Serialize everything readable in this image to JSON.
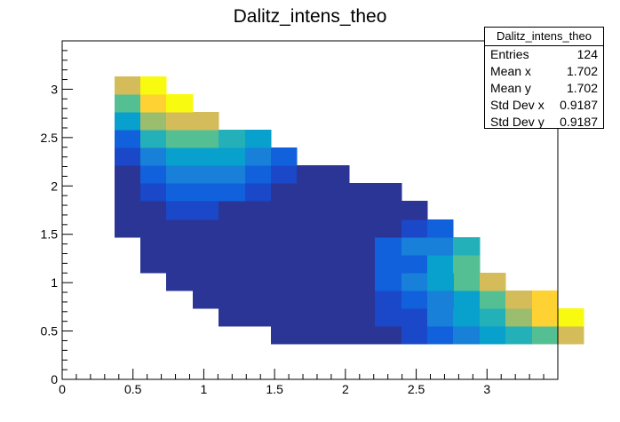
{
  "chart_data": {
    "type": "heatmap",
    "title": "Dalitz_intens_theo",
    "xlabel": "",
    "ylabel": "",
    "xlim": [
      0,
      3.5
    ],
    "ylim": [
      0,
      3.5
    ],
    "bin_width": 0.1842,
    "x_ticks": [
      "0",
      "0.5",
      "1",
      "1.5",
      "2",
      "2.5",
      "3"
    ],
    "y_ticks": [
      "0",
      "0.5",
      "1",
      "1.5",
      "2",
      "2.5",
      "3"
    ],
    "grid": false,
    "palette": [
      "#2a3595",
      "#1a48c8",
      "#1161dd",
      "#1880d8",
      "#08a0cc",
      "#23b0b8",
      "#55bf94",
      "#9abd6e",
      "#d4bc5a",
      "#fdd232",
      "#f8fa0f"
    ],
    "rows": [
      {
        "y_low": 0.368,
        "x_low": 1.473,
        "values": [
          0,
          0,
          0,
          0,
          0,
          1,
          2,
          3,
          4,
          5,
          6,
          8
        ]
      },
      {
        "y_low": 0.552,
        "x_low": 1.105,
        "values": [
          0,
          0,
          0,
          0,
          0,
          0,
          1,
          1,
          3,
          4,
          5,
          7,
          9,
          10
        ]
      },
      {
        "y_low": 0.737,
        "x_low": 0.921,
        "values": [
          0,
          0,
          0,
          0,
          0,
          0,
          0,
          1,
          2,
          3,
          4,
          6,
          8,
          9
        ]
      },
      {
        "y_low": 0.921,
        "x_low": 0.737,
        "values": [
          0,
          0,
          0,
          0,
          0,
          0,
          0,
          0,
          2,
          3,
          4,
          6,
          8
        ]
      },
      {
        "y_low": 1.105,
        "x_low": 0.552,
        "values": [
          0,
          0,
          0,
          0,
          0,
          0,
          0,
          0,
          0,
          2,
          2,
          4,
          6
        ]
      },
      {
        "y_low": 1.289,
        "x_low": 0.552,
        "values": [
          0,
          0,
          0,
          0,
          0,
          0,
          0,
          0,
          0,
          2,
          3,
          3,
          5
        ]
      },
      {
        "y_low": 1.473,
        "x_low": 0.368,
        "values": [
          0,
          0,
          0,
          0,
          0,
          0,
          0,
          0,
          0,
          0,
          0,
          1,
          2
        ]
      },
      {
        "y_low": 1.658,
        "x_low": 0.368,
        "values": [
          0,
          0,
          1,
          1,
          0,
          0,
          0,
          0,
          0,
          0,
          0,
          0
        ]
      },
      {
        "y_low": 1.842,
        "x_low": 0.368,
        "values": [
          0,
          1,
          2,
          2,
          2,
          1,
          0,
          0,
          0,
          0,
          0
        ]
      },
      {
        "y_low": 2.026,
        "x_low": 0.368,
        "values": [
          0,
          2,
          3,
          3,
          3,
          2,
          1,
          0,
          0
        ]
      },
      {
        "y_low": 2.21,
        "x_low": 0.368,
        "values": [
          1,
          3,
          4,
          4,
          4,
          3,
          2
        ]
      },
      {
        "y_low": 2.394,
        "x_low": 0.368,
        "values": [
          2,
          5,
          6,
          6,
          5,
          4
        ]
      },
      {
        "y_low": 2.579,
        "x_low": 0.368,
        "values": [
          4,
          7,
          8,
          8
        ]
      },
      {
        "y_low": 2.763,
        "x_low": 0.368,
        "values": [
          6,
          9,
          10
        ]
      },
      {
        "y_low": 2.947,
        "x_low": 0.368,
        "values": [
          8,
          10
        ]
      }
    ],
    "stats": {
      "title": "Dalitz_intens_theo",
      "rows": [
        {
          "label": "Entries",
          "value": "124"
        },
        {
          "label": "Mean x",
          "value": "1.702"
        },
        {
          "label": "Mean y",
          "value": "1.702"
        },
        {
          "label": "Std Dev x",
          "value": "0.9187"
        },
        {
          "label": "Std Dev y",
          "value": "0.9187"
        }
      ]
    }
  }
}
